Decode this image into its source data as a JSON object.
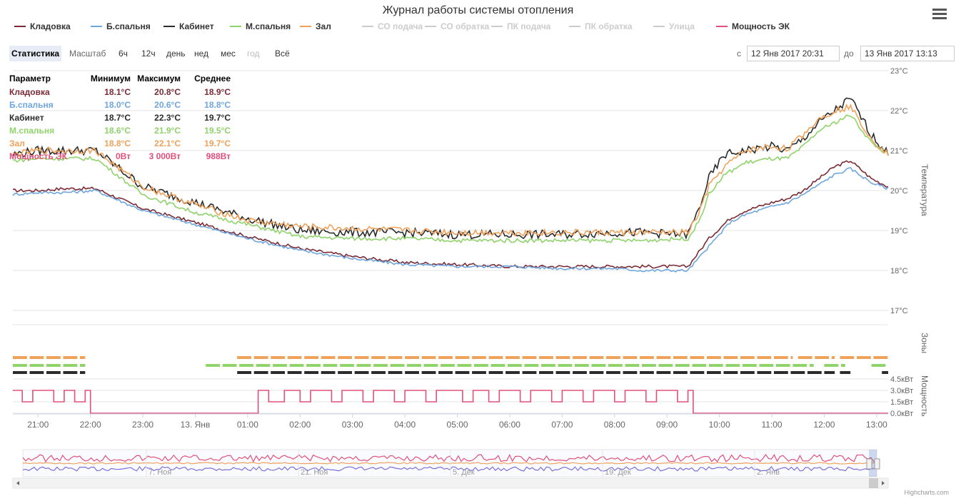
{
  "title": "Журнал работы системы отопления",
  "legend": [
    {
      "name": "Кладовка",
      "color": "#7b2b35",
      "visible": true
    },
    {
      "name": "Б.спальня",
      "color": "#6fa6e0",
      "visible": true
    },
    {
      "name": "Кабинет",
      "color": "#2b2b2b",
      "visible": true
    },
    {
      "name": "М.спальня",
      "color": "#8fd36b",
      "visible": true
    },
    {
      "name": "Зал",
      "color": "#f0a25b",
      "visible": true
    },
    {
      "name": "СО подача",
      "color": "#cccccc",
      "visible": false
    },
    {
      "name": "СО обратка",
      "color": "#cccccc",
      "visible": false
    },
    {
      "name": "ПК подача",
      "color": "#cccccc",
      "visible": false
    },
    {
      "name": "ПК обратка",
      "color": "#cccccc",
      "visible": false
    },
    {
      "name": "Улица",
      "color": "#cccccc",
      "visible": false
    },
    {
      "name": "Мощность ЭК",
      "color": "#e0507a",
      "visible": true
    }
  ],
  "toolbar": {
    "stats_label": "Статистика",
    "scale_label": "Масштаб",
    "ranges": [
      "6ч",
      "12ч",
      "день",
      "нед",
      "мес",
      "год",
      "Всё"
    ],
    "from_label": "с",
    "from_value": "12 Янв 2017 20:31",
    "to_label": "до",
    "to_value": "13 Янв 2017 13:13"
  },
  "stats": {
    "headers": [
      "Параметр",
      "Минимум",
      "Максимум",
      "Среднее"
    ],
    "rows": [
      {
        "name": "Кладовка",
        "min": "18.1°C",
        "max": "20.8°C",
        "avg": "18.9°C",
        "color": "#7b2b35"
      },
      {
        "name": "Б.спальня",
        "min": "18.0°C",
        "max": "20.6°C",
        "avg": "18.8°C",
        "color": "#6fa6e0"
      },
      {
        "name": "Кабинет",
        "min": "18.7°C",
        "max": "22.3°C",
        "avg": "19.7°C",
        "color": "#2b2b2b"
      },
      {
        "name": "М.спальня",
        "min": "18.6°C",
        "max": "21.9°C",
        "avg": "19.5°C",
        "color": "#8fd36b"
      },
      {
        "name": "Зал",
        "min": "18.8°C",
        "max": "22.1°C",
        "avg": "19.7°C",
        "color": "#f0a25b"
      },
      {
        "name": "Мощность ЭК",
        "min": "0Вт",
        "max": "3 000Вт",
        "avg": "988Вт",
        "color": "#e0507a"
      }
    ]
  },
  "axes": {
    "temp_title": "Температура",
    "zones_title": "Зоны",
    "power_title": "Мощность",
    "navigator_labels": [
      "7. Ноя",
      "21. Ноя",
      "5. Дек",
      "19. Дек",
      "2. Янв"
    ]
  },
  "credits": "Highcharts.com",
  "chart_data": [
    {
      "type": "line",
      "title": "Журнал работы системы отопления",
      "ylabel": "Температура",
      "ylim": [
        17,
        23
      ],
      "y_ticks": [
        "17°C",
        "18°C",
        "19°C",
        "20°C",
        "21°C",
        "22°C",
        "23°C"
      ],
      "x_ticks": [
        "21:00",
        "22:00",
        "23:00",
        "13. Янв",
        "01:00",
        "02:00",
        "03:00",
        "04:00",
        "05:00",
        "06:00",
        "07:00",
        "08:00",
        "09:00",
        "10:00",
        "11:00",
        "12:00",
        "13:00"
      ],
      "x_unit": "hour",
      "xlim": [
        20.52,
        37.22
      ],
      "series": [
        {
          "name": "Кладовка",
          "color": "#7b2b35",
          "x": [
            20.52,
            21,
            21.5,
            22.1,
            23,
            24,
            25,
            26,
            27,
            28,
            29,
            30,
            31,
            32,
            32.5,
            33.4,
            33.8,
            34.2,
            34.5,
            35,
            35.3,
            35.6,
            35.9,
            36.2,
            36.5,
            36.9,
            37.22
          ],
          "y": [
            20.0,
            20.0,
            20.05,
            20.05,
            19.55,
            19.2,
            18.85,
            18.55,
            18.35,
            18.2,
            18.15,
            18.1,
            18.1,
            18.1,
            18.1,
            18.1,
            18.8,
            19.3,
            19.5,
            19.7,
            19.8,
            20.0,
            20.3,
            20.6,
            20.75,
            20.3,
            20.1
          ]
        },
        {
          "name": "Б.спальня",
          "color": "#6fa6e0",
          "x": [
            20.52,
            21,
            21.5,
            22.1,
            23,
            24,
            25,
            26,
            27,
            28,
            29,
            30,
            31,
            32,
            32.5,
            33.4,
            33.8,
            34.2,
            34.5,
            35,
            35.3,
            35.6,
            35.9,
            36.2,
            36.5,
            36.9,
            37.22
          ],
          "y": [
            19.9,
            19.95,
            19.95,
            20.0,
            19.5,
            19.15,
            18.8,
            18.5,
            18.3,
            18.15,
            18.1,
            18.1,
            18.05,
            18.05,
            18.0,
            18.0,
            18.6,
            19.2,
            19.4,
            19.6,
            19.7,
            19.9,
            20.15,
            20.4,
            20.55,
            20.2,
            20.05
          ]
        },
        {
          "name": "Кабинет",
          "color": "#2b2b2b",
          "x": [
            20.52,
            21,
            21.5,
            22.1,
            23,
            24,
            25,
            26,
            27,
            28,
            29,
            30,
            31,
            32,
            32.5,
            33.4,
            33.6,
            33.8,
            34.1,
            34.5,
            35,
            35.3,
            35.6,
            35.9,
            36.2,
            36.5,
            36.9,
            37.22
          ],
          "y": [
            20.9,
            21.0,
            21.0,
            21.0,
            20.1,
            19.7,
            19.3,
            19.0,
            18.95,
            18.95,
            18.9,
            18.9,
            18.9,
            18.95,
            18.95,
            18.9,
            19.5,
            20.3,
            20.9,
            21.0,
            21.1,
            21.0,
            21.3,
            21.7,
            22.0,
            22.3,
            21.4,
            20.9
          ]
        },
        {
          "name": "М.спальня",
          "color": "#8fd36b",
          "x": [
            20.52,
            21,
            21.5,
            22.1,
            23,
            24,
            25,
            26,
            27,
            28,
            29,
            30,
            31,
            32,
            32.5,
            33.4,
            33.6,
            33.8,
            34.1,
            34.5,
            35,
            35.3,
            35.6,
            35.9,
            36.2,
            36.5,
            36.9,
            37.22
          ],
          "y": [
            20.75,
            20.8,
            20.8,
            20.8,
            19.9,
            19.45,
            19.15,
            18.85,
            18.8,
            18.8,
            18.75,
            18.75,
            18.75,
            18.75,
            18.75,
            18.8,
            19.2,
            19.9,
            20.4,
            20.7,
            20.8,
            20.8,
            21.1,
            21.5,
            21.7,
            21.9,
            21.2,
            20.9
          ]
        },
        {
          "name": "Зал",
          "color": "#f0a25b",
          "x": [
            20.52,
            21,
            21.5,
            22.1,
            23,
            24,
            25,
            26,
            27,
            28,
            29,
            30,
            31,
            32,
            32.5,
            33.4,
            33.6,
            33.8,
            34.1,
            34.5,
            35,
            35.3,
            35.6,
            35.9,
            36.2,
            36.5,
            36.9,
            37.22
          ],
          "y": [
            20.9,
            21.0,
            21.0,
            21.0,
            20.1,
            19.65,
            19.25,
            19.1,
            19.05,
            19.0,
            18.95,
            18.95,
            18.95,
            18.95,
            18.95,
            18.95,
            19.4,
            20.1,
            20.6,
            21.0,
            21.1,
            21.05,
            21.4,
            21.8,
            22.0,
            22.1,
            21.3,
            20.9
          ]
        }
      ]
    },
    {
      "type": "bar",
      "title": "Зоны",
      "zones": [
        {
          "color": "#f0a25b",
          "on": [
            [
              20.52,
              21.9
            ],
            [
              24.8,
              35.4
            ],
            [
              35.5,
              36.2
            ],
            [
              36.3,
              37.22
            ]
          ]
        },
        {
          "color": "#8fd36b",
          "on": [
            [
              20.52,
              21.9
            ],
            [
              24.2,
              35.8
            ],
            [
              36.0,
              36.4
            ],
            [
              36.9,
              37.22
            ]
          ]
        },
        {
          "color": "#2b2b2b",
          "on": [
            [
              20.52,
              21.9
            ],
            [
              24.8,
              36.2
            ],
            [
              36.3,
              36.5
            ],
            [
              37.1,
              37.22
            ]
          ]
        }
      ]
    },
    {
      "type": "area",
      "title": "Мощность",
      "ylabel": "Мощность",
      "ylim": [
        0,
        4500
      ],
      "y_ticks": [
        "0.0кВт",
        "1.5кВт",
        "3.0кВт",
        "4.5кВт"
      ],
      "series": [
        {
          "name": "Мощность ЭК",
          "color": "#e0507a",
          "x": [
            20.52,
            20.7,
            20.7,
            20.9,
            20.9,
            21.3,
            21.3,
            21.5,
            21.5,
            21.7,
            21.7,
            21.9,
            21.9,
            22.0,
            22.0,
            25.2,
            25.2,
            25.4,
            25.4,
            25.7,
            25.7,
            26.0,
            26.0,
            26.2,
            26.2,
            26.6,
            26.6,
            26.8,
            26.8,
            27.2,
            27.2,
            27.4,
            27.4,
            27.8,
            27.8,
            28.0,
            28.0,
            28.4,
            28.4,
            28.6,
            28.6,
            29.1,
            29.1,
            29.3,
            29.3,
            29.6,
            29.6,
            29.8,
            29.8,
            30.2,
            30.2,
            30.4,
            30.4,
            30.8,
            30.8,
            31.0,
            31.0,
            31.4,
            31.4,
            31.6,
            31.6,
            32.0,
            32.0,
            32.2,
            32.2,
            32.6,
            32.6,
            32.8,
            32.8,
            33.2,
            33.2,
            33.4,
            33.4,
            33.5,
            33.5,
            37.22
          ],
          "y": [
            3000,
            3000,
            1500,
            1500,
            3000,
            3000,
            1500,
            1500,
            3000,
            3000,
            1500,
            1500,
            3000,
            3000,
            0,
            0,
            3000,
            3000,
            1500,
            1500,
            3000,
            3000,
            1500,
            1500,
            3000,
            3000,
            1500,
            1500,
            3000,
            3000,
            1500,
            1500,
            3000,
            3000,
            1500,
            1500,
            3000,
            3000,
            1500,
            1500,
            3000,
            3000,
            1500,
            1500,
            3000,
            3000,
            1500,
            1500,
            3000,
            3000,
            1500,
            1500,
            3000,
            3000,
            1500,
            1500,
            3000,
            3000,
            1500,
            1500,
            3000,
            3000,
            1500,
            1500,
            3000,
            3000,
            1500,
            1500,
            3000,
            3000,
            1500,
            1500,
            3000,
            3000,
            0,
            0
          ]
        }
      ]
    }
  ]
}
